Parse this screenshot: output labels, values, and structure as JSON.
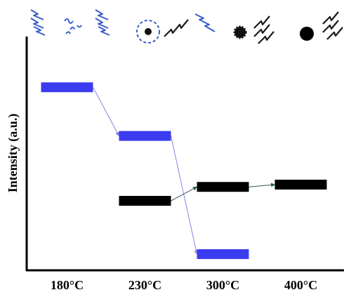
{
  "chart_data": {
    "type": "level",
    "y_label": "Intensity (a.u.)",
    "categories": [
      "180°C",
      "230°C",
      "300°C",
      "400°C"
    ],
    "ylim": [
      0,
      100
    ],
    "series": [
      {
        "color": "#3b3bef",
        "values": [
          79,
          58,
          7,
          null
        ]
      },
      {
        "color": "#000000",
        "values": [
          null,
          30,
          36,
          37
        ]
      }
    ]
  }
}
